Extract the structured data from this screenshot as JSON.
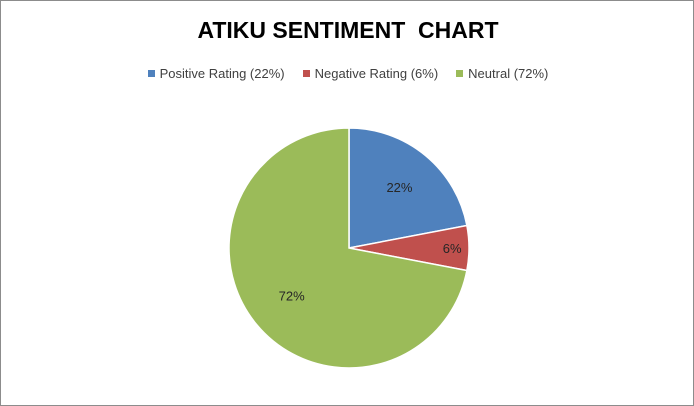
{
  "chart_data": {
    "type": "pie",
    "title": "ATIKU SENTIMENT  CHART",
    "legend_position": "top",
    "categories": [
      "Positive Rating (22%)",
      "Negative Rating (6%)",
      "Neutral (72%)"
    ],
    "values": [
      22,
      6,
      72
    ],
    "data_labels": [
      "22%",
      "6%",
      "72%"
    ],
    "colors": [
      "#4f81bd",
      "#c0504d",
      "#9bbb59"
    ]
  }
}
